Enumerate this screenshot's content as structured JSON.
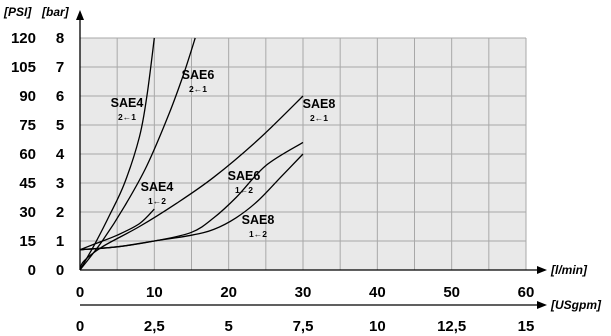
{
  "chart_data": {
    "type": "line",
    "title": "",
    "x_axis": {
      "primary": {
        "unit": "[l/min]",
        "ticks": [
          "0",
          "10",
          "20",
          "30",
          "40",
          "50",
          "60"
        ],
        "range": [
          0,
          60
        ]
      },
      "secondary": {
        "unit": "[USgpm]",
        "ticks": [
          "0",
          "2,5",
          "5",
          "7,5",
          "10",
          "12,5",
          "15"
        ],
        "range": [
          0,
          15
        ]
      }
    },
    "y_axis": {
      "primary": {
        "unit": "[bar]",
        "ticks": [
          "0",
          "1",
          "2",
          "3",
          "4",
          "5",
          "6",
          "7",
          "8"
        ],
        "range": [
          0,
          8
        ]
      },
      "secondary": {
        "unit": "[PSI]",
        "ticks": [
          "0",
          "15",
          "30",
          "45",
          "60",
          "75",
          "90",
          "105",
          "120"
        ],
        "range": [
          0,
          120
        ]
      }
    },
    "grid": true,
    "series": [
      {
        "name": "SAE4",
        "direction": "2←1",
        "x": [
          0,
          2,
          4,
          6,
          8,
          9,
          10
        ],
        "y": [
          0,
          0.9,
          1.9,
          3.0,
          4.6,
          6.0,
          8
        ]
      },
      {
        "name": "SAE6",
        "direction": "2←1",
        "x": [
          0,
          3,
          6,
          9,
          12,
          14,
          15.5
        ],
        "y": [
          0,
          1.0,
          2.2,
          3.6,
          5.4,
          6.8,
          8
        ]
      },
      {
        "name": "SAE8",
        "direction": "2←1",
        "x": [
          0,
          0.5,
          3,
          8,
          13,
          18,
          24,
          30
        ],
        "y": [
          0,
          0.3,
          0.8,
          1.5,
          2.3,
          3.2,
          4.5,
          6
        ]
      },
      {
        "name": "SAE4",
        "direction": "1←2",
        "x": [
          0,
          2,
          5,
          8,
          10
        ],
        "y": [
          0.7,
          0.9,
          1.2,
          1.6,
          2.1
        ]
      },
      {
        "name": "SAE6",
        "direction": "1←2",
        "x": [
          0,
          5,
          10,
          15,
          18,
          21,
          25,
          30
        ],
        "y": [
          0.7,
          0.8,
          1.0,
          1.3,
          1.8,
          2.5,
          3.6,
          4.4
        ]
      },
      {
        "name": "SAE8",
        "direction": "1←2",
        "x": [
          0,
          5,
          10,
          15,
          18,
          21,
          24,
          27,
          30
        ],
        "y": [
          0.7,
          0.8,
          1.0,
          1.2,
          1.4,
          1.8,
          2.4,
          3.2,
          4
        ]
      }
    ]
  }
}
